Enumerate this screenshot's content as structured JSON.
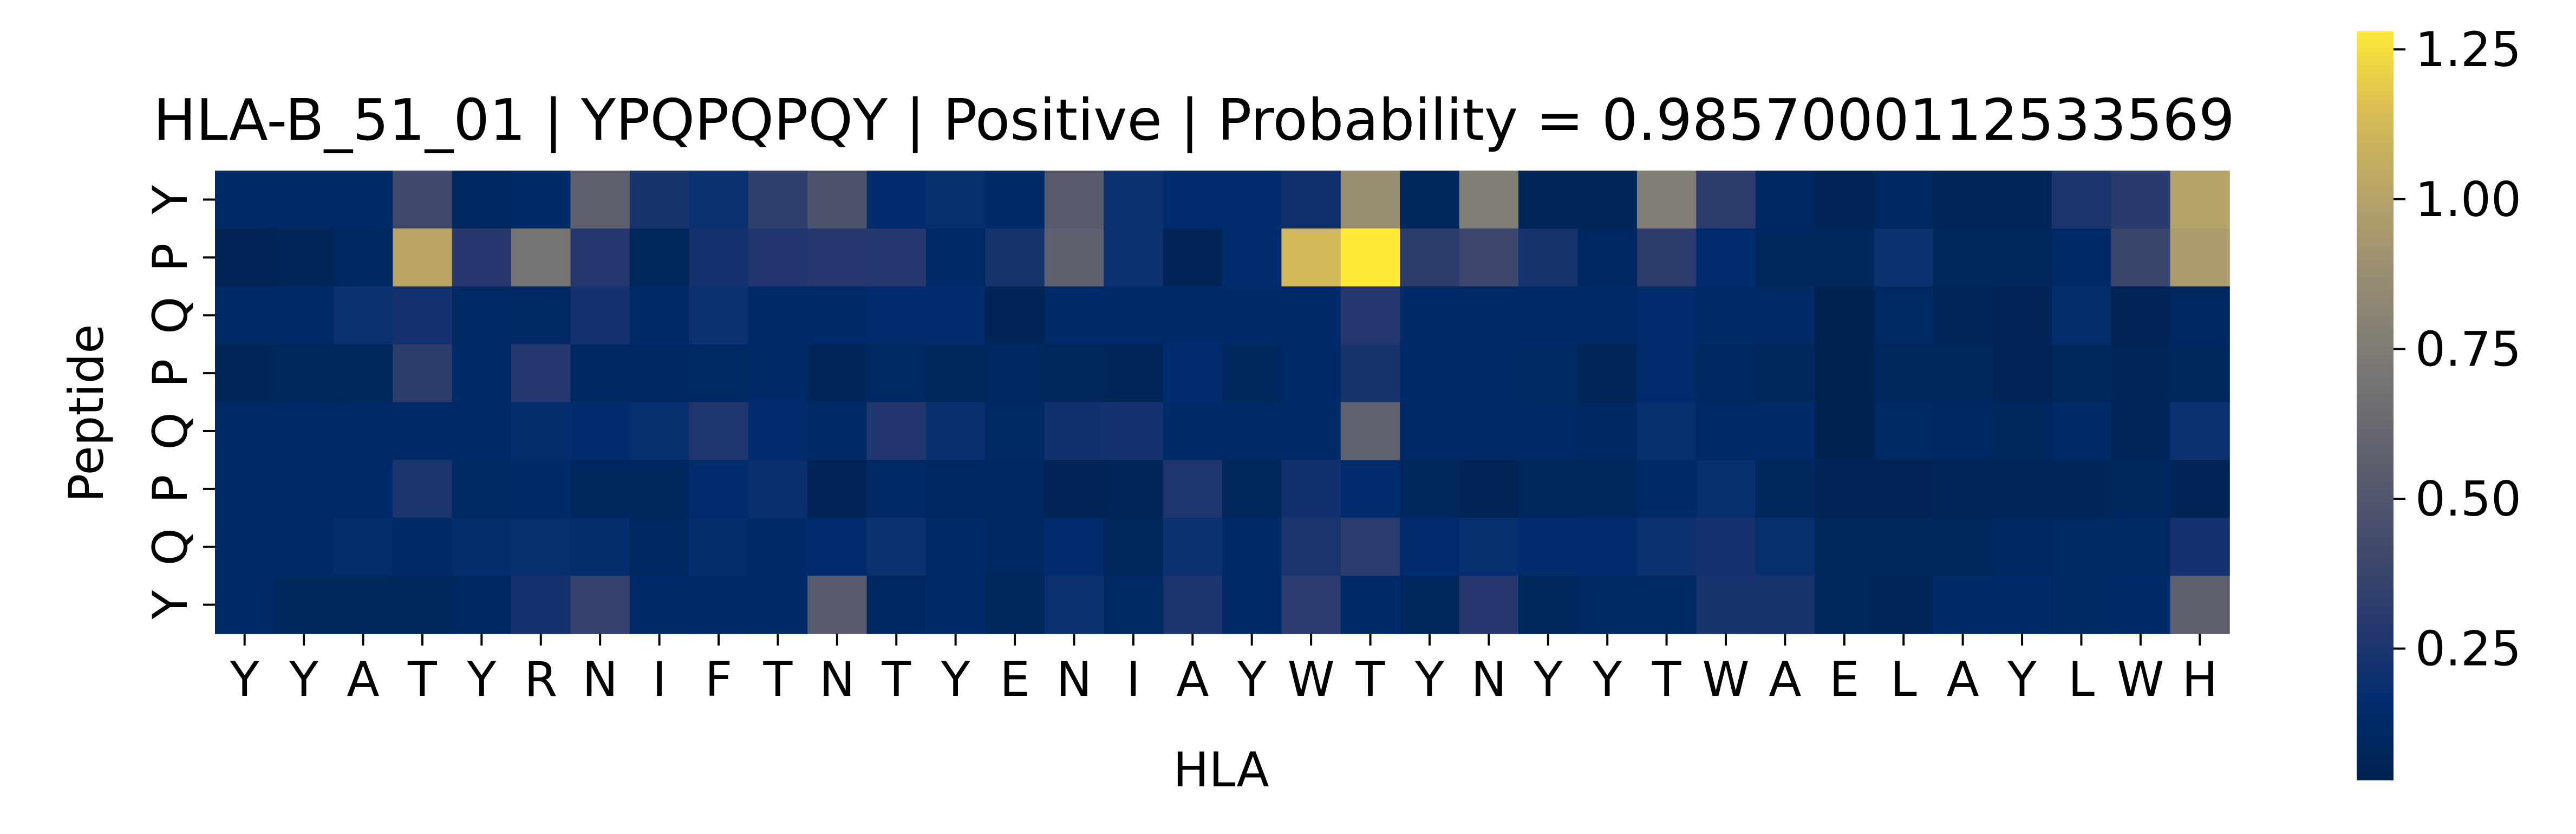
{
  "chart_data": {
    "type": "heatmap",
    "title": "HLA-B_51_01 | YPQPQPQY | Positive | Probability = 0.9857000112533569",
    "xlabel": "HLA",
    "ylabel": "Peptide",
    "x_ticks": [
      "Y",
      "Y",
      "A",
      "T",
      "Y",
      "R",
      "N",
      "I",
      "F",
      "T",
      "N",
      "T",
      "Y",
      "E",
      "N",
      "I",
      "A",
      "Y",
      "W",
      "T",
      "Y",
      "N",
      "Y",
      "Y",
      "T",
      "W",
      "A",
      "E",
      "L",
      "A",
      "Y",
      "L",
      "W",
      "H"
    ],
    "y_ticks": [
      "Y",
      "P",
      "Q",
      "P",
      "Q",
      "P",
      "Q",
      "Y"
    ],
    "colormap": "cividis",
    "colorbar": {
      "min": 0.03,
      "max": 1.28,
      "ticks": [
        0.25,
        0.5,
        0.75,
        1.0,
        1.25
      ],
      "tick_labels": [
        "0.25",
        "0.50",
        "0.75",
        "1.00",
        "1.25"
      ]
    },
    "values": [
      [
        0.12,
        0.12,
        0.12,
        0.4,
        0.1,
        0.14,
        0.57,
        0.23,
        0.2,
        0.34,
        0.48,
        0.16,
        0.18,
        0.13,
        0.53,
        0.2,
        0.15,
        0.16,
        0.21,
        0.88,
        0.09,
        0.76,
        0.07,
        0.07,
        0.76,
        0.32,
        0.1,
        0.06,
        0.1,
        0.07,
        0.07,
        0.25,
        0.3,
        1.0
      ],
      [
        0.05,
        0.07,
        0.1,
        1.02,
        0.29,
        0.7,
        0.28,
        0.08,
        0.22,
        0.27,
        0.29,
        0.28,
        0.12,
        0.23,
        0.56,
        0.2,
        0.06,
        0.15,
        1.12,
        1.28,
        0.32,
        0.39,
        0.23,
        0.1,
        0.32,
        0.15,
        0.09,
        0.09,
        0.2,
        0.08,
        0.08,
        0.13,
        0.38,
        0.96
      ],
      [
        0.13,
        0.13,
        0.2,
        0.22,
        0.12,
        0.11,
        0.22,
        0.13,
        0.2,
        0.13,
        0.14,
        0.15,
        0.16,
        0.06,
        0.14,
        0.14,
        0.14,
        0.14,
        0.14,
        0.28,
        0.13,
        0.12,
        0.13,
        0.12,
        0.15,
        0.12,
        0.12,
        0.04,
        0.11,
        0.07,
        0.06,
        0.17,
        0.06,
        0.1
      ],
      [
        0.07,
        0.08,
        0.09,
        0.32,
        0.14,
        0.28,
        0.1,
        0.1,
        0.11,
        0.14,
        0.07,
        0.11,
        0.09,
        0.1,
        0.08,
        0.07,
        0.15,
        0.09,
        0.14,
        0.24,
        0.12,
        0.12,
        0.11,
        0.07,
        0.15,
        0.1,
        0.08,
        0.04,
        0.09,
        0.09,
        0.06,
        0.08,
        0.07,
        0.08
      ],
      [
        0.12,
        0.12,
        0.13,
        0.13,
        0.13,
        0.17,
        0.16,
        0.18,
        0.26,
        0.16,
        0.13,
        0.27,
        0.19,
        0.11,
        0.21,
        0.22,
        0.14,
        0.13,
        0.14,
        0.58,
        0.12,
        0.13,
        0.12,
        0.1,
        0.18,
        0.12,
        0.14,
        0.04,
        0.11,
        0.1,
        0.09,
        0.14,
        0.07,
        0.2
      ],
      [
        0.13,
        0.12,
        0.14,
        0.25,
        0.11,
        0.13,
        0.09,
        0.09,
        0.15,
        0.19,
        0.06,
        0.12,
        0.1,
        0.1,
        0.05,
        0.07,
        0.26,
        0.08,
        0.21,
        0.15,
        0.08,
        0.06,
        0.08,
        0.08,
        0.14,
        0.18,
        0.08,
        0.06,
        0.06,
        0.07,
        0.07,
        0.07,
        0.09,
        0.05
      ],
      [
        0.13,
        0.13,
        0.17,
        0.12,
        0.17,
        0.18,
        0.17,
        0.1,
        0.17,
        0.14,
        0.15,
        0.2,
        0.14,
        0.1,
        0.15,
        0.08,
        0.2,
        0.13,
        0.25,
        0.31,
        0.15,
        0.18,
        0.16,
        0.15,
        0.2,
        0.22,
        0.18,
        0.08,
        0.09,
        0.09,
        0.1,
        0.11,
        0.11,
        0.22
      ],
      [
        0.12,
        0.09,
        0.09,
        0.09,
        0.1,
        0.22,
        0.36,
        0.14,
        0.13,
        0.14,
        0.53,
        0.1,
        0.13,
        0.08,
        0.2,
        0.11,
        0.25,
        0.13,
        0.31,
        0.14,
        0.09,
        0.29,
        0.08,
        0.11,
        0.11,
        0.24,
        0.23,
        0.08,
        0.07,
        0.14,
        0.14,
        0.11,
        0.14,
        0.57
      ]
    ]
  }
}
